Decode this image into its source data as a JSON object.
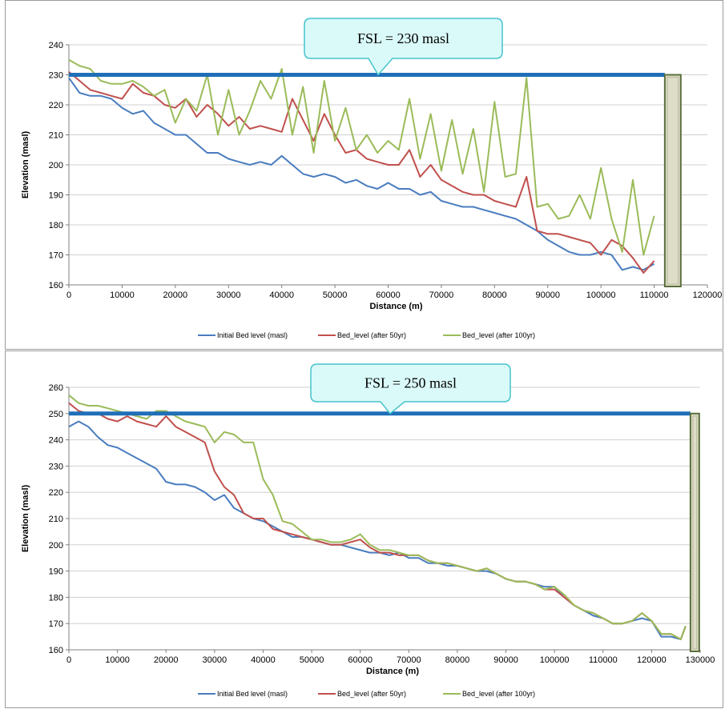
{
  "chart_data": [
    {
      "type": "line",
      "xlabel": "Distance (m)",
      "ylabel": "Elevation (masl)",
      "xlim": [
        0,
        120000
      ],
      "ylim": [
        160,
        240
      ],
      "x_ticks": [
        0,
        10000,
        20000,
        30000,
        40000,
        50000,
        60000,
        70000,
        80000,
        90000,
        100000,
        110000,
        120000
      ],
      "y_ticks": [
        160,
        170,
        180,
        190,
        200,
        210,
        220,
        230,
        240
      ],
      "grid": "horizontal",
      "legend_position": "bottom",
      "annotation": "FSL = 230 masl",
      "fsl_level": 230,
      "fsl_x_range": [
        0,
        112000
      ],
      "dam_x_range": [
        112000,
        115000
      ],
      "colors": {
        "fsl": "#1f6fb8",
        "dam_fill": "#ddddc8",
        "dam_stroke": "#5a6e3c",
        "callout_fill": "#dafaf9",
        "callout_stroke": "#46c3cc"
      },
      "series": [
        {
          "name": "Initial Bed level (masl)",
          "color": "#4a7dbf",
          "x": [
            0,
            2000,
            4000,
            6000,
            8000,
            10000,
            12000,
            14000,
            16000,
            18000,
            20000,
            22000,
            24000,
            26000,
            28000,
            30000,
            32000,
            34000,
            36000,
            38000,
            40000,
            42000,
            44000,
            46000,
            48000,
            50000,
            52000,
            54000,
            56000,
            58000,
            60000,
            62000,
            64000,
            66000,
            68000,
            70000,
            72000,
            74000,
            76000,
            78000,
            80000,
            82000,
            84000,
            86000,
            88000,
            90000,
            92000,
            94000,
            96000,
            98000,
            100000,
            102000,
            104000,
            106000,
            108000,
            110000
          ],
          "y": [
            229,
            224,
            223,
            223,
            222,
            219,
            217,
            218,
            214,
            212,
            210,
            210,
            207,
            204,
            204,
            202,
            201,
            200,
            201,
            200,
            203,
            200,
            197,
            196,
            197,
            196,
            194,
            195,
            193,
            192,
            194,
            192,
            192,
            190,
            191,
            188,
            187,
            186,
            186,
            185,
            184,
            183,
            182,
            180,
            178,
            175,
            173,
            171,
            170,
            170,
            171,
            170,
            165,
            166,
            165,
            167
          ]
        },
        {
          "name": "Bed_level (after 50yr)",
          "color": "#c0504d",
          "x": [
            0,
            2000,
            4000,
            6000,
            8000,
            10000,
            12000,
            14000,
            16000,
            18000,
            20000,
            22000,
            24000,
            26000,
            28000,
            30000,
            32000,
            34000,
            36000,
            38000,
            40000,
            42000,
            44000,
            46000,
            48000,
            50000,
            52000,
            54000,
            56000,
            58000,
            60000,
            62000,
            64000,
            66000,
            68000,
            70000,
            72000,
            74000,
            76000,
            78000,
            80000,
            82000,
            84000,
            86000,
            88000,
            90000,
            92000,
            94000,
            96000,
            98000,
            100000,
            102000,
            104000,
            106000,
            108000,
            110000
          ],
          "y": [
            231,
            228,
            225,
            224,
            223,
            222,
            227,
            224,
            223,
            220,
            219,
            222,
            216,
            220,
            217,
            213,
            216,
            212,
            213,
            212,
            211,
            222,
            215,
            208,
            217,
            210,
            204,
            205,
            202,
            201,
            200,
            200,
            205,
            196,
            200,
            195,
            193,
            191,
            190,
            190,
            188,
            187,
            186,
            196,
            178,
            177,
            177,
            176,
            175,
            174,
            170,
            175,
            173,
            169,
            164,
            168
          ]
        },
        {
          "name": "Bed_level (after 100yr)",
          "color": "#9bbb59",
          "x": [
            0,
            2000,
            4000,
            6000,
            8000,
            10000,
            12000,
            14000,
            16000,
            18000,
            20000,
            22000,
            24000,
            26000,
            28000,
            30000,
            32000,
            34000,
            36000,
            38000,
            40000,
            42000,
            44000,
            46000,
            48000,
            50000,
            52000,
            54000,
            56000,
            58000,
            60000,
            62000,
            64000,
            66000,
            68000,
            70000,
            72000,
            74000,
            76000,
            78000,
            80000,
            82000,
            84000,
            86000,
            88000,
            90000,
            92000,
            94000,
            96000,
            98000,
            100000,
            102000,
            104000,
            106000,
            108000,
            110000
          ],
          "y": [
            235,
            233,
            232,
            228,
            227,
            227,
            228,
            226,
            223,
            225,
            214,
            222,
            218,
            230,
            210,
            225,
            210,
            218,
            228,
            222,
            232,
            210,
            226,
            204,
            228,
            208,
            219,
            205,
            210,
            204,
            208,
            205,
            222,
            202,
            217,
            198,
            215,
            197,
            212,
            191,
            221,
            196,
            197,
            229,
            186,
            187,
            182,
            183,
            190,
            182,
            199,
            182,
            171,
            195,
            170,
            183
          ]
        }
      ]
    },
    {
      "type": "line",
      "xlabel": "Distance (m)",
      "ylabel": "Elevation (masl)",
      "xlim": [
        0,
        130000
      ],
      "ylim": [
        160,
        260
      ],
      "x_ticks": [
        0,
        10000,
        20000,
        30000,
        40000,
        50000,
        60000,
        70000,
        80000,
        90000,
        100000,
        110000,
        120000,
        130000
      ],
      "y_ticks": [
        160,
        170,
        180,
        190,
        200,
        210,
        220,
        230,
        240,
        250,
        260
      ],
      "grid": "horizontal",
      "legend_position": "bottom",
      "annotation": "FSL = 250 masl",
      "fsl_level": 250,
      "fsl_x_range": [
        0,
        128000
      ],
      "dam_x_range": [
        128000,
        129800
      ],
      "colors": {
        "fsl": "#1f6fb8",
        "dam_fill": "#ddddc8",
        "dam_stroke": "#5a6e3c",
        "callout_fill": "#dafaf9",
        "callout_stroke": "#46c3cc"
      },
      "series": [
        {
          "name": "Initial Bed level (masl)",
          "color": "#4a7dbf",
          "x": [
            0,
            2000,
            4000,
            6000,
            8000,
            10000,
            12000,
            14000,
            16000,
            18000,
            20000,
            22000,
            24000,
            26000,
            28000,
            30000,
            32000,
            34000,
            36000,
            38000,
            40000,
            42000,
            44000,
            46000,
            48000,
            50000,
            52000,
            54000,
            56000,
            58000,
            60000,
            62000,
            64000,
            66000,
            68000,
            70000,
            72000,
            74000,
            76000,
            78000,
            80000,
            82000,
            84000,
            86000,
            88000,
            90000,
            92000,
            94000,
            96000,
            98000,
            100000,
            102000,
            104000,
            106000,
            108000,
            110000,
            112000,
            114000,
            116000,
            118000,
            120000,
            122000,
            124000,
            126000,
            127000
          ],
          "y": [
            245,
            247,
            245,
            241,
            238,
            237,
            235,
            233,
            231,
            229,
            224,
            223,
            223,
            222,
            220,
            217,
            219,
            214,
            212,
            210,
            209,
            207,
            205,
            203,
            203,
            202,
            201,
            200,
            200,
            199,
            198,
            197,
            197,
            196,
            197,
            195,
            195,
            193,
            193,
            192,
            192,
            191,
            190,
            190,
            189,
            187,
            186,
            186,
            185,
            184,
            184,
            180,
            177,
            175,
            173,
            172,
            170,
            170,
            171,
            172,
            171,
            165,
            165,
            164,
            169
          ]
        },
        {
          "name": "Bed_level (after 50yr)",
          "color": "#c0504d",
          "x": [
            0,
            2000,
            4000,
            6000,
            8000,
            10000,
            12000,
            14000,
            16000,
            18000,
            20000,
            22000,
            24000,
            26000,
            28000,
            30000,
            32000,
            34000,
            36000,
            38000,
            40000,
            42000,
            44000,
            46000,
            48000,
            50000,
            52000,
            54000,
            56000,
            58000,
            60000,
            62000,
            64000,
            66000,
            68000,
            70000,
            72000,
            74000,
            76000,
            78000,
            80000,
            82000,
            84000,
            86000,
            88000,
            90000,
            92000,
            94000,
            96000,
            98000,
            100000,
            102000,
            104000,
            106000,
            108000,
            110000,
            112000,
            114000,
            116000,
            118000,
            120000,
            122000,
            124000,
            126000,
            127000
          ],
          "y": [
            254,
            251,
            250,
            250,
            248,
            247,
            249,
            247,
            246,
            245,
            249,
            245,
            243,
            241,
            239,
            228,
            222,
            219,
            212,
            210,
            210,
            206,
            205,
            204,
            203,
            202,
            201,
            200,
            200,
            201,
            202,
            199,
            197,
            197,
            196,
            196,
            196,
            194,
            193,
            193,
            192,
            191,
            190,
            191,
            189,
            187,
            186,
            186,
            185,
            183,
            183,
            180,
            177,
            175,
            174,
            172,
            170,
            170,
            171,
            174,
            171,
            166,
            166,
            164,
            169
          ]
        },
        {
          "name": "Bed_level (after 100yr)",
          "color": "#9bbb59",
          "x": [
            0,
            2000,
            4000,
            6000,
            8000,
            10000,
            12000,
            14000,
            16000,
            18000,
            20000,
            22000,
            24000,
            26000,
            28000,
            30000,
            32000,
            34000,
            36000,
            38000,
            40000,
            42000,
            44000,
            46000,
            48000,
            50000,
            52000,
            54000,
            56000,
            58000,
            60000,
            62000,
            64000,
            66000,
            68000,
            70000,
            72000,
            74000,
            76000,
            78000,
            80000,
            82000,
            84000,
            86000,
            88000,
            90000,
            92000,
            94000,
            96000,
            98000,
            100000,
            102000,
            104000,
            106000,
            108000,
            110000,
            112000,
            114000,
            116000,
            118000,
            120000,
            122000,
            124000,
            126000,
            127000
          ],
          "y": [
            257,
            254,
            253,
            253,
            252,
            251,
            250,
            249,
            248,
            251,
            251,
            249,
            247,
            246,
            245,
            239,
            243,
            242,
            239,
            239,
            225,
            219,
            209,
            208,
            205,
            202,
            202,
            201,
            201,
            202,
            204,
            200,
            198,
            198,
            197,
            196,
            196,
            194,
            193,
            193,
            192,
            191,
            190,
            191,
            189,
            187,
            186,
            186,
            185,
            183,
            184,
            181,
            177,
            175,
            174,
            172,
            170,
            170,
            171,
            174,
            171,
            166,
            166,
            164,
            169
          ]
        }
      ]
    }
  ]
}
